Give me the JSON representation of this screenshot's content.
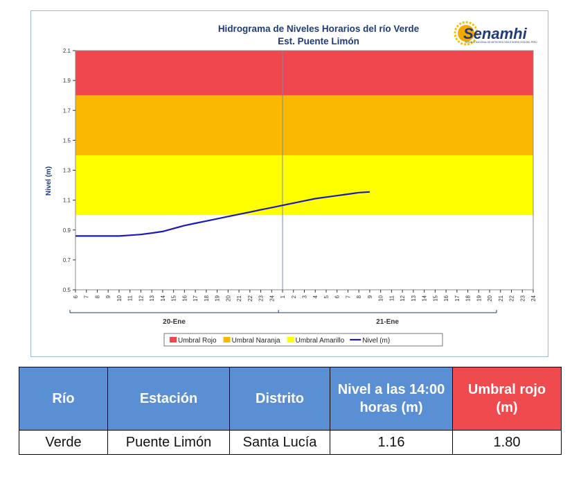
{
  "chart_data": {
    "type": "line",
    "title": "Hidrograma de Niveles Horarios del río Verde",
    "subtitle": "Est. Puente Limón",
    "ylabel": "Nivel (m)",
    "ylim": [
      0.5,
      2.1
    ],
    "yticks": [
      "0.5",
      "0.7",
      "0.9",
      "1.1",
      "1.3",
      "1.5",
      "1.7",
      "1.9",
      "2.1"
    ],
    "x_tick_labels": [
      "6",
      "7",
      "8",
      "9",
      "10",
      "11",
      "12",
      "13",
      "14",
      "15",
      "16",
      "17",
      "18",
      "19",
      "20",
      "21",
      "22",
      "23",
      "24",
      "1",
      "2",
      "3",
      "4",
      "5",
      "6",
      "7",
      "8",
      "9",
      "10",
      "11",
      "12",
      "13",
      "14",
      "15",
      "16",
      "17",
      "18",
      "19",
      "20",
      "21",
      "22",
      "23",
      "24"
    ],
    "day_labels": [
      "20-Ene",
      "21-Ene"
    ],
    "thresholds": [
      {
        "name": "Umbral Rojo",
        "from": 1.8,
        "to": 2.1,
        "color": "#f0474e"
      },
      {
        "name": "Umbral Naranja",
        "from": 1.4,
        "to": 1.8,
        "color": "#fbb800"
      },
      {
        "name": "Umbral Amarillo",
        "from": 1.0,
        "to": 1.4,
        "color": "#ffff00"
      }
    ],
    "series": [
      {
        "name": "Nivel (m)",
        "color": "#1a1ab8",
        "values": [
          0.86,
          0.86,
          0.86,
          0.86,
          0.86,
          0.865,
          0.87,
          0.88,
          0.89,
          0.91,
          0.93,
          0.945,
          0.96,
          0.975,
          0.99,
          1.005,
          1.02,
          1.035,
          1.05,
          1.065,
          1.08,
          1.095,
          1.11,
          1.12,
          1.13,
          1.14,
          1.15,
          1.155
        ]
      }
    ],
    "grid": false,
    "legend_position": "bottom"
  },
  "logo": {
    "text": "Senamhi",
    "subtitle": "SERVICIO NACIONAL DE METEOROLOGÍA E HIDROLOGÍA DEL PERÚ"
  },
  "table": {
    "headers": [
      "Río",
      "Estación",
      "Distrito",
      "Nivel a las 14:00 horas (m)",
      "Umbral rojo (m)"
    ],
    "row": [
      "Verde",
      "Puente Limón",
      "Santa Lucía",
      "1.16",
      "1.80"
    ]
  }
}
